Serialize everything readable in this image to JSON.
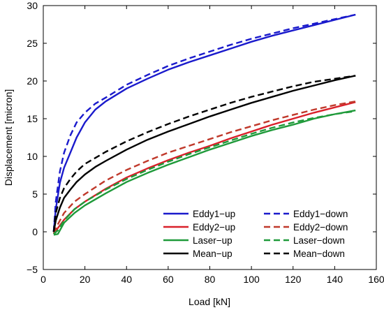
{
  "chart_data": {
    "type": "line",
    "xlabel": "Load [kN]",
    "ylabel": "Displacement [micron]",
    "xlim": [
      0,
      160
    ],
    "ylim": [
      -5,
      30
    ],
    "xticks": [
      0,
      20,
      40,
      60,
      80,
      100,
      120,
      140,
      160
    ],
    "yticks": [
      -5,
      0,
      5,
      10,
      15,
      20,
      25,
      30
    ],
    "grid": false,
    "legend_position": "bottom-right",
    "legend_columns": 2,
    "series": [
      {
        "name": "Eddy1−up",
        "color": "#1a1acc",
        "dash": "solid",
        "x": [
          5,
          6,
          8,
          10,
          13,
          16,
          20,
          25,
          30,
          40,
          50,
          60,
          70,
          80,
          90,
          100,
          110,
          120,
          130,
          140,
          150
        ],
        "y": [
          0,
          3,
          6.5,
          8.5,
          10.5,
          12.5,
          14.5,
          16.2,
          17.3,
          19.0,
          20.3,
          21.5,
          22.5,
          23.4,
          24.3,
          25.2,
          26.0,
          26.7,
          27.4,
          28.1,
          28.8
        ]
      },
      {
        "name": "Eddy1−down",
        "color": "#1a1acc",
        "dash": "dashed",
        "x": [
          5,
          6,
          8,
          10,
          13,
          16,
          20,
          25,
          30,
          40,
          50,
          60,
          70,
          80,
          90,
          100,
          110,
          120,
          130,
          140,
          150
        ],
        "y": [
          0,
          4,
          8,
          10.5,
          12.8,
          14.5,
          15.8,
          17.0,
          17.8,
          19.5,
          20.8,
          22.0,
          23.0,
          23.9,
          24.8,
          25.6,
          26.3,
          27.0,
          27.6,
          28.2,
          28.8
        ]
      },
      {
        "name": "Eddy2−up",
        "color": "#d9202a",
        "dash": "solid",
        "x": [
          5,
          7,
          10,
          15,
          20,
          30,
          40,
          50,
          60,
          70,
          80,
          90,
          100,
          110,
          120,
          130,
          140,
          150
        ],
        "y": [
          -0.3,
          0.5,
          1.6,
          3.0,
          4.0,
          5.7,
          7.2,
          8.4,
          9.5,
          10.5,
          11.4,
          12.4,
          13.3,
          14.2,
          15.0,
          15.8,
          16.5,
          17.2
        ]
      },
      {
        "name": "Eddy2−down",
        "color": "#c0392b",
        "dash": "dashed",
        "x": [
          5,
          7,
          10,
          15,
          20,
          30,
          40,
          50,
          60,
          70,
          80,
          90,
          100,
          110,
          120,
          130,
          140,
          150
        ],
        "y": [
          -0.2,
          1.0,
          2.5,
          4.0,
          5.0,
          6.8,
          8.2,
          9.4,
          10.5,
          11.4,
          12.3,
          13.2,
          14.0,
          14.8,
          15.5,
          16.2,
          16.8,
          17.3
        ]
      },
      {
        "name": "Laser−up",
        "color": "#1f9a3a",
        "dash": "solid",
        "x": [
          5,
          7,
          10,
          15,
          20,
          30,
          40,
          50,
          60,
          70,
          80,
          90,
          100,
          110,
          120,
          130,
          140,
          150
        ],
        "y": [
          -0.4,
          -0.3,
          1.2,
          2.5,
          3.5,
          5.1,
          6.6,
          7.8,
          8.9,
          9.9,
          10.9,
          11.8,
          12.7,
          13.5,
          14.2,
          15.0,
          15.6,
          16.1
        ]
      },
      {
        "name": "Laser−down",
        "color": "#1f9a3a",
        "dash": "dashed",
        "x": [
          5,
          7,
          10,
          15,
          20,
          30,
          40,
          50,
          60,
          70,
          80,
          90,
          100,
          110,
          120,
          130,
          140,
          150
        ],
        "y": [
          -0.3,
          0.2,
          1.5,
          3.0,
          4.0,
          5.6,
          7.0,
          8.2,
          9.3,
          10.3,
          11.2,
          12.1,
          13.0,
          13.8,
          14.5,
          15.1,
          15.6,
          16.0
        ]
      },
      {
        "name": "Mean−up",
        "color": "#000000",
        "dash": "solid",
        "x": [
          5,
          6,
          8,
          10,
          13,
          16,
          20,
          25,
          30,
          40,
          50,
          60,
          70,
          80,
          90,
          100,
          110,
          120,
          130,
          140,
          150
        ],
        "y": [
          0,
          1.5,
          3.2,
          4.5,
          5.6,
          6.6,
          7.6,
          8.6,
          9.4,
          10.9,
          12.2,
          13.3,
          14.3,
          15.3,
          16.2,
          17.1,
          17.9,
          18.7,
          19.4,
          20.1,
          20.7
        ]
      },
      {
        "name": "Mean−down",
        "color": "#000000",
        "dash": "dashed",
        "x": [
          5,
          6,
          8,
          10,
          13,
          16,
          20,
          25,
          30,
          40,
          50,
          60,
          70,
          80,
          90,
          100,
          110,
          120,
          130,
          140,
          150
        ],
        "y": [
          0,
          2.5,
          4.5,
          5.8,
          7.0,
          8.0,
          9.0,
          9.8,
          10.6,
          12.0,
          13.2,
          14.3,
          15.3,
          16.2,
          17.1,
          17.9,
          18.6,
          19.3,
          19.9,
          20.3,
          20.7
        ]
      }
    ]
  }
}
